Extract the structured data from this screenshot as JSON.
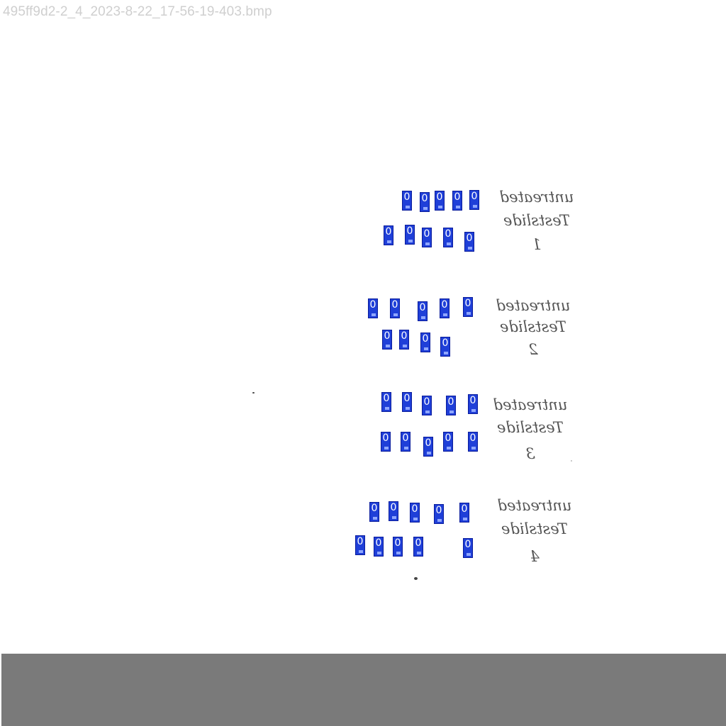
{
  "window": {
    "title": "495ff9d2-2_4_2023-8-22_17-56-19-403.bmp"
  },
  "detections": {
    "label": "0",
    "color": "#1f3fd8",
    "count": 38
  },
  "handwritten_labels": [
    {
      "lines": [
        "untreated",
        "Testslide",
        "1"
      ]
    },
    {
      "lines": [
        "untreated",
        "Testslide",
        "2"
      ]
    },
    {
      "lines": [
        "untreated",
        "Testslide",
        "3"
      ]
    },
    {
      "lines": [
        "untreated",
        "Testslide",
        "4"
      ]
    }
  ],
  "footer": {
    "color": "#7a7a7a"
  }
}
